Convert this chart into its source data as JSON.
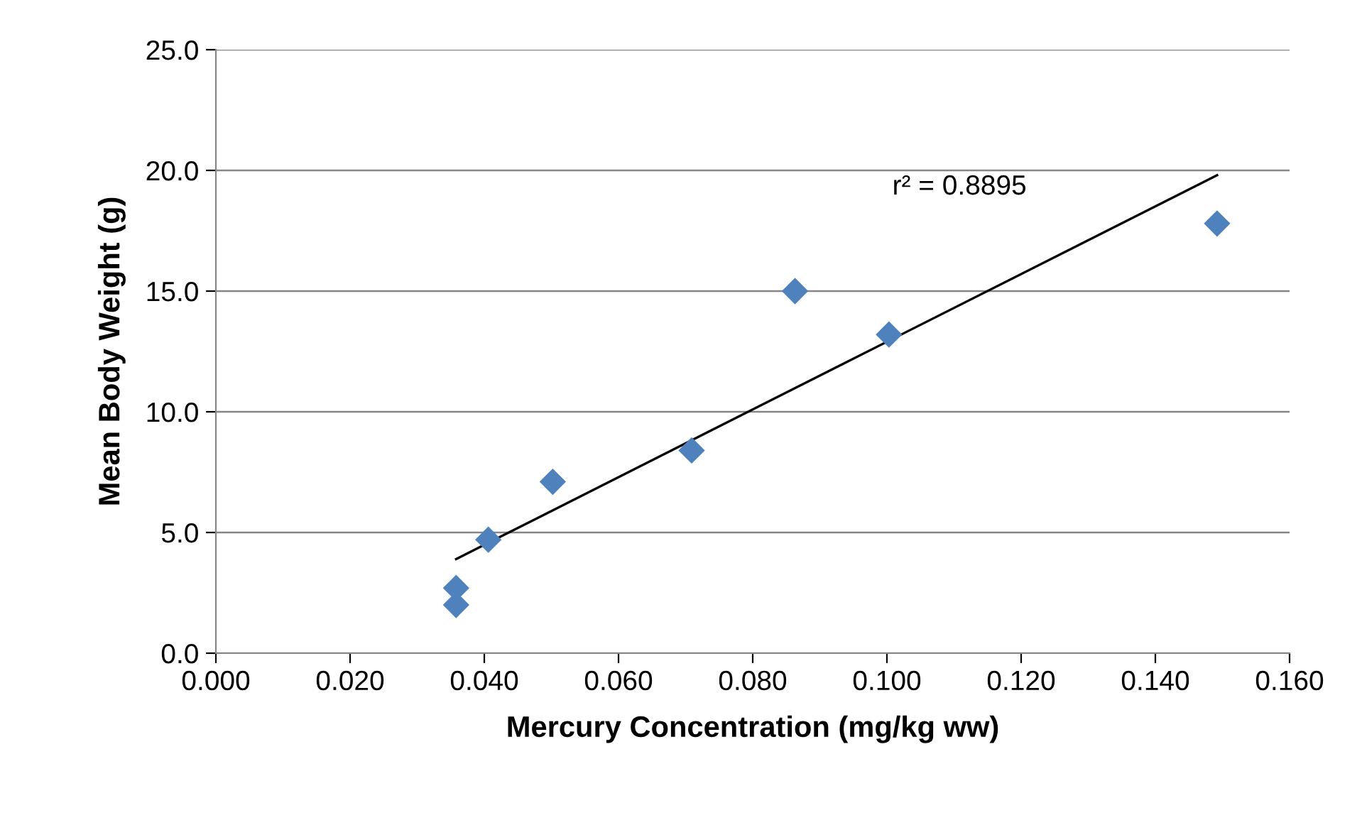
{
  "chart_data": {
    "type": "scatter",
    "xlabel": "Mercury Concentration (mg/kg ww)",
    "ylabel": "Mean Body Weight (g)",
    "series": [
      {
        "color": "#4f81bd",
        "marker": "diamond",
        "x": [
          0.0358,
          0.0358,
          0.0406,
          0.0502,
          0.0709,
          0.0863,
          0.1003,
          0.1492
        ],
        "values": [
          2.7,
          2.0,
          4.7,
          7.1,
          8.4,
          15.0,
          13.2,
          17.8
        ]
      },
      {
        "type": "line",
        "color": "#000000",
        "marker": "none",
        "line_style": "solid",
        "x": [
          0.0358,
          0.1492
        ],
        "values": [
          3.9,
          19.8
        ]
      }
    ],
    "annotations": [
      "r² = 0.8895"
    ],
    "xlim": [
      0.0,
      0.16
    ],
    "xticks": [
      {
        "value": 0,
        "label": "0.000"
      },
      {
        "value": 0.02,
        "label": "0.020"
      },
      {
        "value": 0.04,
        "label": "0.040"
      },
      {
        "value": 0.06,
        "label": "0.060"
      },
      {
        "value": 0.08,
        "label": "0.080"
      },
      {
        "value": 0.1,
        "label": "0.100"
      },
      {
        "value": 0.12,
        "label": "0.120"
      },
      {
        "value": 0.14,
        "label": "0.140"
      },
      {
        "value": 0.16,
        "label": "0.160"
      }
    ],
    "ylim": [
      0,
      25
    ],
    "yticks": [
      {
        "value": 0,
        "label": "0.0"
      },
      {
        "value": 5,
        "label": "5.0"
      },
      {
        "value": 10,
        "label": "10.0"
      },
      {
        "value": 15,
        "label": "15.0"
      },
      {
        "value": 20,
        "label": "20.0"
      },
      {
        "value": 25,
        "label": "25.0"
      }
    ],
    "grid": "y"
  }
}
